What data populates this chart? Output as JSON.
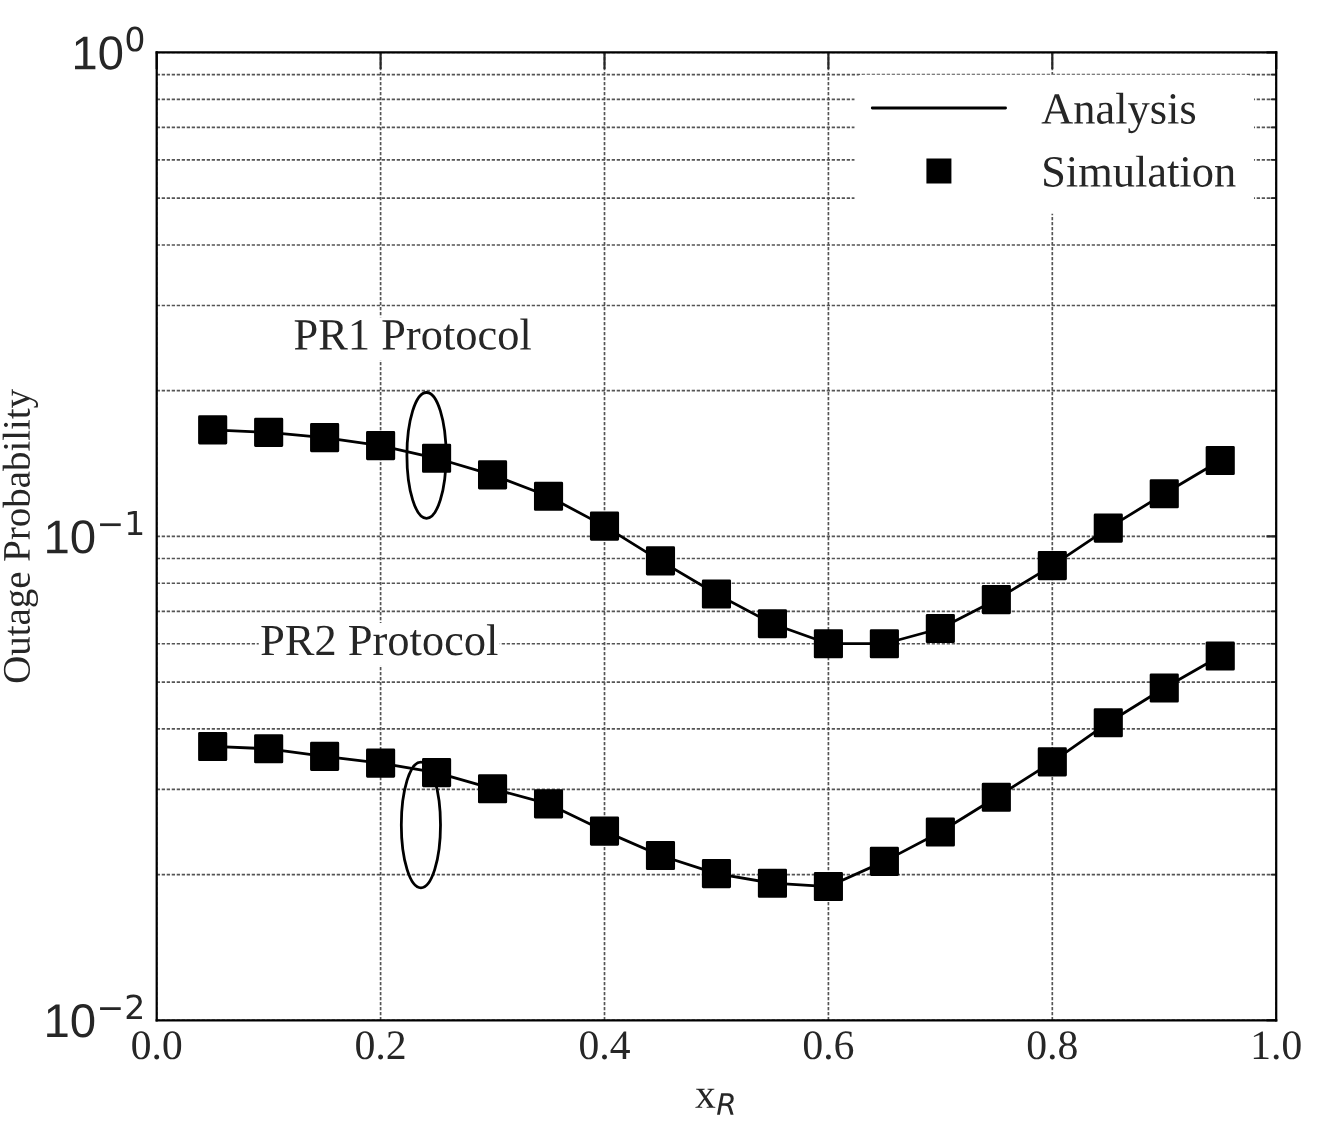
{
  "chart_data": {
    "type": "line",
    "xlabel": "x$_{R}$",
    "ylabel": "Outage Probability",
    "x": [
      0.05,
      0.1,
      0.15,
      0.2,
      0.25,
      0.3,
      0.35,
      0.4,
      0.45,
      0.5,
      0.55,
      0.6,
      0.65,
      0.7,
      0.75,
      0.8,
      0.85,
      0.9,
      0.95,
      null,
      0.05,
      0.1,
      0.15,
      0.2,
      0.25,
      0.3,
      0.35,
      0.4,
      0.45,
      0.5,
      0.55,
      0.6,
      0.65,
      0.7,
      0.75,
      0.8,
      0.85,
      0.9,
      0.95
    ],
    "series": [
      {
        "name": "Analysis",
        "marker": "none",
        "line_style": "solid",
        "color": "#000000",
        "values": [
          0.166,
          0.164,
          0.16,
          0.154,
          0.145,
          0.134,
          0.121,
          0.105,
          0.089,
          0.076,
          0.066,
          0.06,
          0.06,
          0.0645,
          0.074,
          0.087,
          0.104,
          0.1225,
          0.1435,
          null,
          0.0368,
          0.0364,
          0.0351,
          0.034,
          0.0325,
          0.0301,
          0.028,
          0.0246,
          0.0219,
          0.0201,
          0.0192,
          0.0189,
          0.0213,
          0.0245,
          0.0289,
          0.0342,
          0.0412,
          0.0486,
          0.0566
        ]
      },
      {
        "name": "Simulation",
        "type": "scatter",
        "marker": "square",
        "color": "#000000",
        "values": [
          0.166,
          0.164,
          0.16,
          0.154,
          0.145,
          0.134,
          0.121,
          0.105,
          0.089,
          0.076,
          0.066,
          0.06,
          0.06,
          0.0645,
          0.074,
          0.087,
          0.104,
          0.1225,
          0.1435,
          null,
          0.0368,
          0.0364,
          0.0351,
          0.034,
          0.0325,
          0.0301,
          0.028,
          0.0246,
          0.0219,
          0.0201,
          0.0192,
          0.0189,
          0.0213,
          0.0245,
          0.0289,
          0.0342,
          0.0412,
          0.0486,
          0.0566
        ]
      }
    ],
    "log": "y",
    "xlim": [
      0.0,
      1.0
    ],
    "xticks": [
      {
        "value": 0.0,
        "label": "0.0"
      },
      0.2,
      0.4,
      0.6,
      0.8,
      {
        "value": 1.0,
        "label": "1.0"
      }
    ],
    "ylim": [
      0.01,
      1
    ],
    "yticks": [
      {
        "value": 0.01,
        "label": "10$^{−2}$"
      },
      {
        "value": 0.1,
        "label": "10$^{−1}$"
      },
      {
        "value": 1,
        "label": "10$^{0}$"
      }
    ],
    "grid": true,
    "legend": "top right",
    "annotations": [
      {
        "text": "PR1 Protocol",
        "x": 0.241,
        "y": 0.147
      },
      {
        "text": "PR2 Protocol",
        "x": 0.236,
        "y": 0.033
      }
    ]
  }
}
